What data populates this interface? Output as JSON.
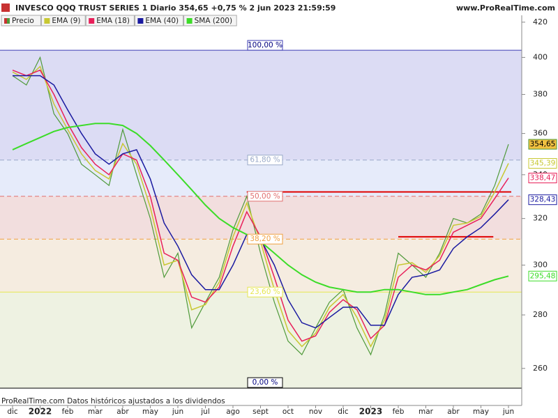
{
  "chart_data": {
    "type": "line",
    "title": "INVESCO QQQ TRUST SERIES 1 Diario 354,65 +0,75 % 2 jun 2023 21:59:59",
    "source": "www.ProRealTime.com",
    "footnote": "ProRealTime.com  Datos históricos ajustados a los dividendos",
    "log_scale": true,
    "categories": [
      "dic",
      null,
      "2022",
      null,
      "feb",
      null,
      "mar",
      null,
      "abr",
      null,
      "may",
      null,
      "jun",
      null,
      "jul",
      null,
      "ago",
      null,
      "sept",
      null,
      "oct",
      null,
      "nov",
      null,
      "dic",
      null,
      "2023",
      null,
      "feb",
      null,
      "mar",
      null,
      "abr",
      null,
      "may",
      null,
      "jun"
    ],
    "bold_categories": [
      "2022",
      "2023"
    ],
    "series": [
      {
        "name": "Precio",
        "color": "#4f9a3a",
        "label_fill": "#f0c040",
        "values": [
          390,
          385,
          400,
          370,
          360,
          345,
          340,
          335,
          362,
          340,
          320,
          295,
          305,
          275,
          285,
          295,
          315,
          330,
          305,
          285,
          270,
          265,
          275,
          285,
          290,
          275,
          265,
          280,
          305,
          300,
          295,
          305,
          320,
          318,
          322,
          335,
          354.65
        ],
        "value_labels": [
          null,
          null,
          null,
          null,
          null,
          null,
          null,
          null,
          null,
          null,
          null,
          null,
          null,
          null,
          null,
          null,
          null,
          null,
          null,
          null,
          null,
          null,
          null,
          null,
          null,
          null,
          null,
          null,
          null,
          null,
          null,
          null,
          null,
          null,
          null,
          null,
          "354,65"
        ]
      },
      {
        "name": "EMA (9)",
        "color": "#c8c832",
        "values": [
          392,
          388,
          395,
          375,
          362,
          350,
          342,
          338,
          355,
          345,
          325,
          300,
          302,
          282,
          284,
          293,
          312,
          327,
          310,
          290,
          274,
          268,
          273,
          283,
          288,
          279,
          268,
          278,
          300,
          301,
          297,
          304,
          317,
          318,
          321,
          332,
          345.39
        ],
        "value_labels": [
          null,
          null,
          null,
          null,
          null,
          null,
          null,
          null,
          null,
          null,
          null,
          null,
          null,
          null,
          null,
          null,
          null,
          null,
          null,
          null,
          null,
          null,
          null,
          null,
          null,
          null,
          null,
          null,
          null,
          null,
          null,
          null,
          null,
          null,
          null,
          null,
          "345,39"
        ]
      },
      {
        "name": "EMA (18)",
        "color": "#e8205a",
        "values": [
          393,
          390,
          393,
          380,
          365,
          353,
          345,
          340,
          350,
          347,
          330,
          305,
          302,
          287,
          285,
          291,
          308,
          323,
          312,
          295,
          278,
          270,
          272,
          281,
          286,
          282,
          271,
          276,
          295,
          300,
          298,
          302,
          314,
          317,
          320,
          329,
          338.47
        ],
        "value_labels": [
          null,
          null,
          null,
          null,
          null,
          null,
          null,
          null,
          null,
          null,
          null,
          null,
          null,
          null,
          null,
          null,
          null,
          null,
          null,
          null,
          null,
          null,
          null,
          null,
          null,
          null,
          null,
          null,
          null,
          null,
          null,
          null,
          null,
          null,
          null,
          null,
          "338,47"
        ]
      },
      {
        "name": "EMA (40)",
        "color": "#1a1aa0",
        "values": [
          390,
          390,
          390,
          385,
          372,
          360,
          350,
          345,
          350,
          352,
          338,
          318,
          308,
          296,
          290,
          290,
          300,
          313,
          311,
          300,
          286,
          277,
          275,
          279,
          283,
          283,
          276,
          276,
          288,
          295,
          296,
          298,
          307,
          312,
          316,
          322,
          328.43
        ],
        "value_labels": [
          null,
          null,
          null,
          null,
          null,
          null,
          null,
          null,
          null,
          null,
          null,
          null,
          null,
          null,
          null,
          null,
          null,
          null,
          null,
          null,
          null,
          null,
          null,
          null,
          null,
          null,
          null,
          null,
          null,
          null,
          null,
          null,
          null,
          null,
          null,
          null,
          "328,43"
        ]
      },
      {
        "name": "SMA (200)",
        "color": "#3cdc28",
        "values": [
          352,
          355,
          358,
          361,
          363,
          364,
          365,
          365,
          364,
          360,
          354,
          347,
          340,
          333,
          326,
          320,
          316,
          313,
          310,
          305,
          300,
          296,
          293,
          291,
          290,
          289,
          289,
          290,
          290,
          289,
          288,
          288,
          289,
          290,
          292,
          294,
          295.48
        ],
        "value_labels": [
          null,
          null,
          null,
          null,
          null,
          null,
          null,
          null,
          null,
          null,
          null,
          null,
          null,
          null,
          null,
          null,
          null,
          null,
          null,
          null,
          null,
          null,
          null,
          null,
          null,
          null,
          null,
          null,
          null,
          null,
          null,
          null,
          null,
          null,
          null,
          null,
          "295,48"
        ]
      }
    ],
    "fib_levels": [
      {
        "label": "100,00 %",
        "value": 404,
        "color": "#3c3cb4",
        "fill": "#dcdcf4"
      },
      {
        "label": "61,80 %",
        "value": 347,
        "color": "#9aaac8",
        "fill": "#e6ebfa"
      },
      {
        "label": "50,00 %",
        "value": 330,
        "color": "#e07070",
        "fill": "#f2dede"
      },
      {
        "label": "38,20 %",
        "value": 311,
        "color": "#f0a040",
        "fill": "#f5ece0"
      },
      {
        "label": "23,60 %",
        "value": 289,
        "color": "#e6e650",
        "fill": "#eef2e2"
      },
      {
        "label": "0,00 %",
        "value": 253,
        "color": "#000000"
      }
    ],
    "hlines": [
      {
        "value": 332,
        "from": 17,
        "to": 36.2,
        "color": "#e00000"
      },
      {
        "value": 312,
        "from": 28,
        "to": 34.9,
        "color": "#e00000"
      }
    ],
    "ylim": [
      247,
      424
    ],
    "yticks": [
      260,
      280,
      300,
      320,
      340,
      360,
      380,
      400,
      420
    ]
  }
}
